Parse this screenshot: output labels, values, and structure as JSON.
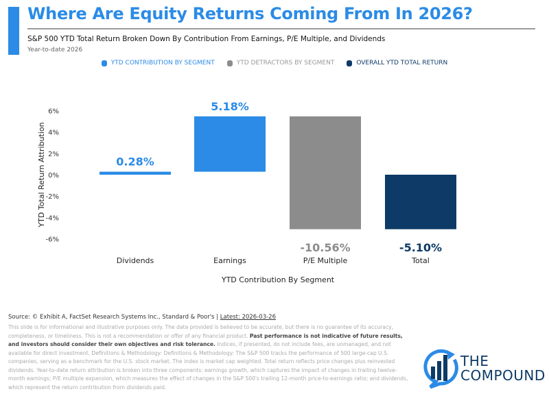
{
  "header": {
    "title": "Where Are Equity Returns Coming From In 2026?",
    "subtitle": "S&P 500 YTD Total Return Broken Down By Contribution From Earnings, P/E Multiple, and Dividends",
    "period": "Year-to-date 2026"
  },
  "legend": [
    {
      "label": "YTD CONTRIBUTION BY SEGMENT",
      "color": "#2b8be6"
    },
    {
      "label": "YTD DETRACTORS BY SEGMENT",
      "color": "#8c8c8c"
    },
    {
      "label": "OVERALL YTD TOTAL RETURN",
      "color": "#0d3a66"
    }
  ],
  "chart_data": {
    "type": "bar",
    "subtype": "waterfall",
    "categories": [
      "Dividends",
      "Earnings",
      "P/E Multiple",
      "Total"
    ],
    "values": [
      0.28,
      5.18,
      -10.56,
      -5.1
    ],
    "value_labels": [
      "0.28%",
      "5.18%",
      "-10.56%",
      "-5.10%"
    ],
    "kinds": [
      "contribution",
      "contribution",
      "detractor",
      "total"
    ],
    "colors": {
      "contribution": "#2b8be6",
      "detractor": "#8c8c8c",
      "total": "#0d3a66"
    },
    "xlabel": "YTD Contribution By Segment",
    "ylabel": "YTD Total Return Attribution",
    "ylim": [
      -6,
      6
    ],
    "yticks": [
      6,
      4,
      2,
      0,
      -2,
      -4,
      -6
    ],
    "ytick_labels": [
      "6%",
      "4%",
      "2%",
      "0%",
      "-2%",
      "-4%",
      "-6%"
    ],
    "grid": false
  },
  "footer": {
    "source": "Source: © Exhibit A, FactSet Research Systems Inc., Standard & Poor's | ",
    "latest": "Latest: 2026-03-26",
    "disclaimer_1": "This slide is for informational and illustrative purposes only. The data provided is believed to be accurate, but there is no guarantee of its accuracy, completeness, or timeliness. This is not a recommendation or offer of any financial product. ",
    "disclaimer_bold": "Past performance is not indicative of future results, and investors should consider their own objectives and risk tolerance.",
    "disclaimer_2": " Indices, if presented, do not include fees, are unmanaged, and not available for direct investment. Definitions & Methodology: Definitions & Methodology: The S&P 500 tracks the performance of 500 large-cap U.S. companies, serving as a benchmark for the U.S. stock market. The index is market cap weighted. Total return reflects price changes plus reinvested dividends. Year-to-date return attribution is broken into three components: earnings growth, which captures the impact of changes in trailing twelve-month earnings; P/E multiple expansion, which measures the effect of changes in the S&P 500's trailing 12-month price-to-earnings ratio; and dividends, which represent the return contribution from dividends paid."
  },
  "logo": {
    "line1": "THE",
    "line2": "COMPOUND"
  }
}
